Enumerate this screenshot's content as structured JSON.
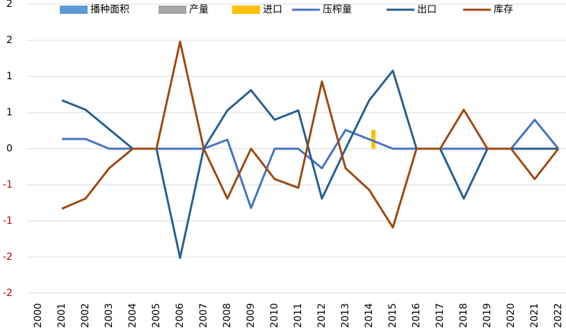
{
  "chart_data": {
    "type": "combo",
    "categories": [
      "2000",
      "2001",
      "2002",
      "2003",
      "2004",
      "2005",
      "2006",
      "2007",
      "2008",
      "2009",
      "2010",
      "2011",
      "2012",
      "2013",
      "2014",
      "2015",
      "2016",
      "2017",
      "2018",
      "2019",
      "2020",
      "2021",
      "2022"
    ],
    "series": [
      {
        "name": "播种面积",
        "type": "bar",
        "color": "#5b9bd5",
        "values": [
          null,
          0,
          0,
          0,
          0,
          0,
          0,
          0,
          0,
          0,
          0,
          0,
          0,
          0,
          0,
          0,
          0,
          0,
          0,
          0,
          0,
          0,
          0
        ]
      },
      {
        "name": "产量",
        "type": "bar",
        "color": "#a5a5a5",
        "values": [
          null,
          0,
          0,
          0,
          0,
          0,
          0,
          0,
          0,
          0,
          0,
          0,
          0,
          0,
          0,
          0,
          0,
          0,
          0,
          0,
          0,
          0,
          0
        ]
      },
      {
        "name": "进口",
        "type": "bar",
        "color": "#ffc000",
        "values": [
          null,
          0,
          0,
          0,
          0,
          0,
          0,
          0,
          0,
          0,
          0,
          0,
          0,
          0,
          0.26,
          0,
          0,
          0,
          0,
          0,
          0,
          0,
          0
        ]
      },
      {
        "name": "压榨量",
        "type": "line",
        "color": "#4472c4",
        "values": [
          null,
          0.135,
          0.135,
          0,
          0,
          0,
          0,
          0,
          0.125,
          -0.82,
          0,
          0,
          -0.27,
          0.26,
          0.13,
          0,
          0,
          0,
          0,
          0,
          0,
          0.4,
          0
        ]
      },
      {
        "name": "出口",
        "type": "line",
        "color": "#255e91",
        "values": [
          null,
          0.67,
          0.54,
          0.27,
          0,
          0,
          -1.51,
          0,
          0.53,
          0.81,
          0.4,
          0.53,
          -0.69,
          0,
          0.67,
          1.08,
          0,
          0,
          -0.69,
          0,
          0,
          0,
          0
        ]
      },
      {
        "name": "库存",
        "type": "line",
        "color": "#9e480e",
        "values": [
          null,
          -0.83,
          -0.69,
          -0.27,
          0,
          0,
          1.48,
          0,
          -0.69,
          0,
          -0.42,
          -0.54,
          0.93,
          -0.27,
          -0.57,
          -1.09,
          0,
          0,
          0.54,
          0,
          0,
          -0.42,
          0
        ]
      }
    ],
    "ylim": [
      -2,
      2
    ],
    "yticks": [
      {
        "value": 2,
        "label": "2"
      },
      {
        "value": 1.5,
        "label": "2"
      },
      1,
      {
        "value": 0.5,
        "label": "1"
      },
      0,
      {
        "value": -0.5,
        "label": "-1"
      },
      -1,
      {
        "value": -1.5,
        "label": "-2"
      },
      -2
    ],
    "negative_tick_color": "#c00000",
    "grid": true,
    "legend": "top"
  }
}
